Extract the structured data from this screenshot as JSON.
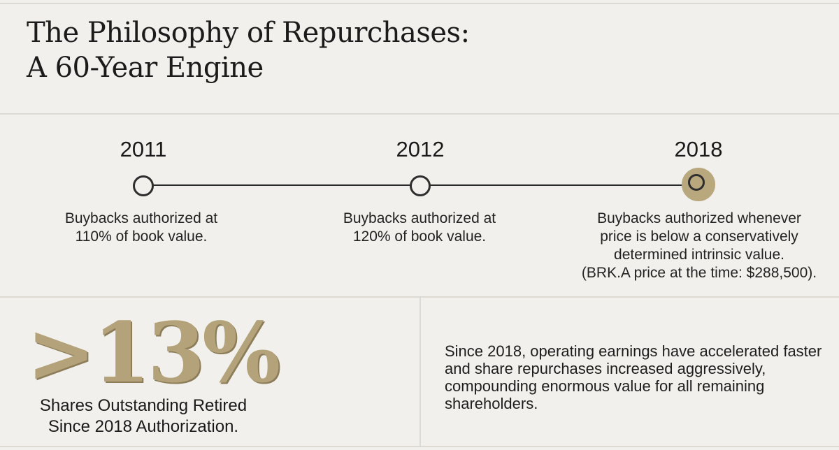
{
  "header": {
    "title_line1": "The Philosophy of Repurchases:",
    "title_line2": "A 60-Year Engine"
  },
  "timeline": [
    {
      "year": "2011",
      "lines": [
        "Buybacks authorized at",
        "110% of book value."
      ],
      "active": false
    },
    {
      "year": "2012",
      "lines": [
        "Buybacks authorized at",
        "120% of book value."
      ],
      "active": false
    },
    {
      "year": "2018",
      "lines": [
        "Buybacks authorized whenever",
        "price is below a conservatively",
        "determined intrinsic value.",
        "(BRK.A price at the time: $288,500)."
      ],
      "active": true
    }
  ],
  "stat": {
    "value": ">13%",
    "label_line1": "Shares Outstanding Retired",
    "label_line2": "Since 2018 Authorization."
  },
  "note": {
    "text": "Since 2018, operating earnings have accelerated faster and share repurchases increased aggressively, compounding enormous value for all remaining shareholders."
  },
  "colors": {
    "background": "#f1f0ec",
    "accent_gold": "#b3a27a",
    "text": "#1a1a1a"
  }
}
